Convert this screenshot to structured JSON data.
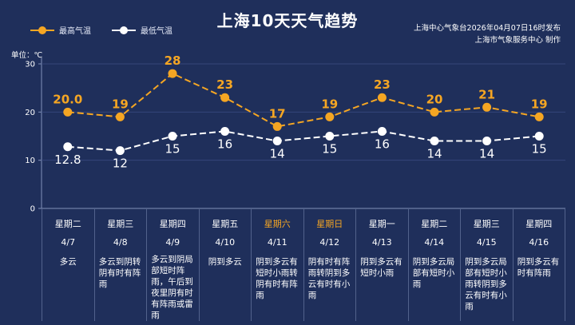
{
  "title": "上海10天天气趋势",
  "publisher": {
    "line1": "上海中心气象台2026年04月07日16时发布",
    "line2": "上海市气象服务中心  制作"
  },
  "unit_label": "单位：℃",
  "colors": {
    "background": "#1f2f5b",
    "high": "#f5a623",
    "low": "#ffffff",
    "weekend": "#f5a623"
  },
  "days": [
    {
      "weekday": "星期二",
      "date": "4/7",
      "weather": "多云",
      "weekend": false
    },
    {
      "weekday": "星期三",
      "date": "4/8",
      "weather": "多云到阴转阴有时有阵雨",
      "weekend": false
    },
    {
      "weekday": "星期四",
      "date": "4/9",
      "weather": "多云到阴局部短时阵雨，午后到夜里阴有时有阵雨或雷雨",
      "weekend": false
    },
    {
      "weekday": "星期五",
      "date": "4/10",
      "weather": "阴到多云",
      "weekend": false
    },
    {
      "weekday": "星期六",
      "date": "4/11",
      "weather": "阴到多云有短时小雨转阴有时有阵雨",
      "weekend": true
    },
    {
      "weekday": "星期日",
      "date": "4/12",
      "weather": "阴有时有阵雨转阴到多云有时有小雨",
      "weekend": true
    },
    {
      "weekday": "星期一",
      "date": "4/13",
      "weather": "阴到多云有短时小雨",
      "weekend": false
    },
    {
      "weekday": "星期二",
      "date": "4/14",
      "weather": "阴到多云局部有短时小雨",
      "weekend": false
    },
    {
      "weekday": "星期三",
      "date": "4/15",
      "weather": "阴到多云局部有短时小雨转阴到多云有时有小雨",
      "weekend": false
    },
    {
      "weekday": "星期四",
      "date": "4/16",
      "weather": "阴到多云有时有阵雨",
      "weekend": false
    }
  ],
  "chart_data": {
    "type": "line",
    "categories": [
      "4/7",
      "4/8",
      "4/9",
      "4/10",
      "4/11",
      "4/12",
      "4/13",
      "4/14",
      "4/15",
      "4/16"
    ],
    "series": [
      {
        "name": "最高气温",
        "values": [
          20.0,
          19,
          28,
          23,
          17,
          19,
          23,
          20,
          21,
          19
        ],
        "labels": [
          "20.0",
          "19",
          "28",
          "23",
          "17",
          "19",
          "23",
          "20",
          "21",
          "19"
        ],
        "color": "#f5a623"
      },
      {
        "name": "最低气温",
        "values": [
          12.8,
          12,
          15,
          16,
          14,
          15,
          16,
          14,
          14,
          15
        ],
        "labels": [
          "12.8",
          "12",
          "15",
          "16",
          "14",
          "15",
          "16",
          "14",
          "14",
          "15"
        ],
        "color": "#ffffff"
      }
    ],
    "ylim": [
      0,
      30
    ],
    "yticks": [
      "0",
      "10",
      "20",
      "30"
    ],
    "ylabel": "单位：℃",
    "grid": true,
    "legend": "top-left"
  }
}
